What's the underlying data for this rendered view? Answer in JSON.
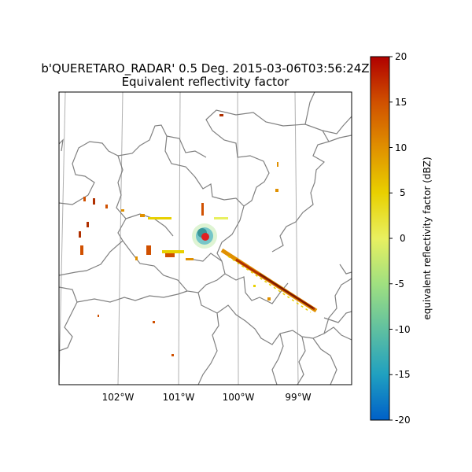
{
  "title": {
    "line1": "b'QUERETARO_RADAR' 0.5 Deg. 2015-03-06T03:56:24Z",
    "line2": "Equivalent reflectivity factor"
  },
  "map": {
    "x_ticks": [
      "102°W",
      "101°W",
      "100°W",
      "99°W"
    ],
    "boundary_color": "#808080",
    "gridline_color": "#b0b0b0",
    "radar_marker_color": "#e02020"
  },
  "colorbar": {
    "label": "equivalent reflectivity factor (dBZ)",
    "min": -20,
    "max": 20,
    "ticks": [
      "20",
      "15",
      "10",
      "5",
      "0",
      "-5",
      "-10",
      "-15",
      "-20"
    ],
    "colormap": [
      "#0060c8",
      "#20a0c0",
      "#60c0a0",
      "#a0e080",
      "#e8f060",
      "#e8d000",
      "#e09000",
      "#d05000",
      "#b00000"
    ]
  }
}
